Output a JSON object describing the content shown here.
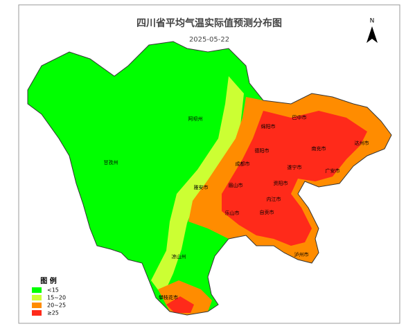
{
  "header": {
    "title": "四川省平均气温实际值预测分布图",
    "date": "2025-05-22",
    "north": "N"
  },
  "legend": {
    "title": "图 例",
    "items": [
      {
        "label": "<15",
        "color": "#00ff00"
      },
      {
        "label": "15~20",
        "color": "#ccff33"
      },
      {
        "label": "20~25",
        "color": "#ff8c00"
      },
      {
        "label": "≥25",
        "color": "#ff2a1a"
      }
    ]
  },
  "cities": [
    "阿坝州",
    "甘孜州",
    "绵阳市",
    "巴中市",
    "达州市",
    "南充市",
    "德阳市",
    "成都市",
    "广安市",
    "遂宁市",
    "雅安市",
    "眉山市",
    "资阳市",
    "内江市",
    "乐山市",
    "自贡市",
    "泸州市",
    "凉山州",
    "攀枝花市"
  ]
}
